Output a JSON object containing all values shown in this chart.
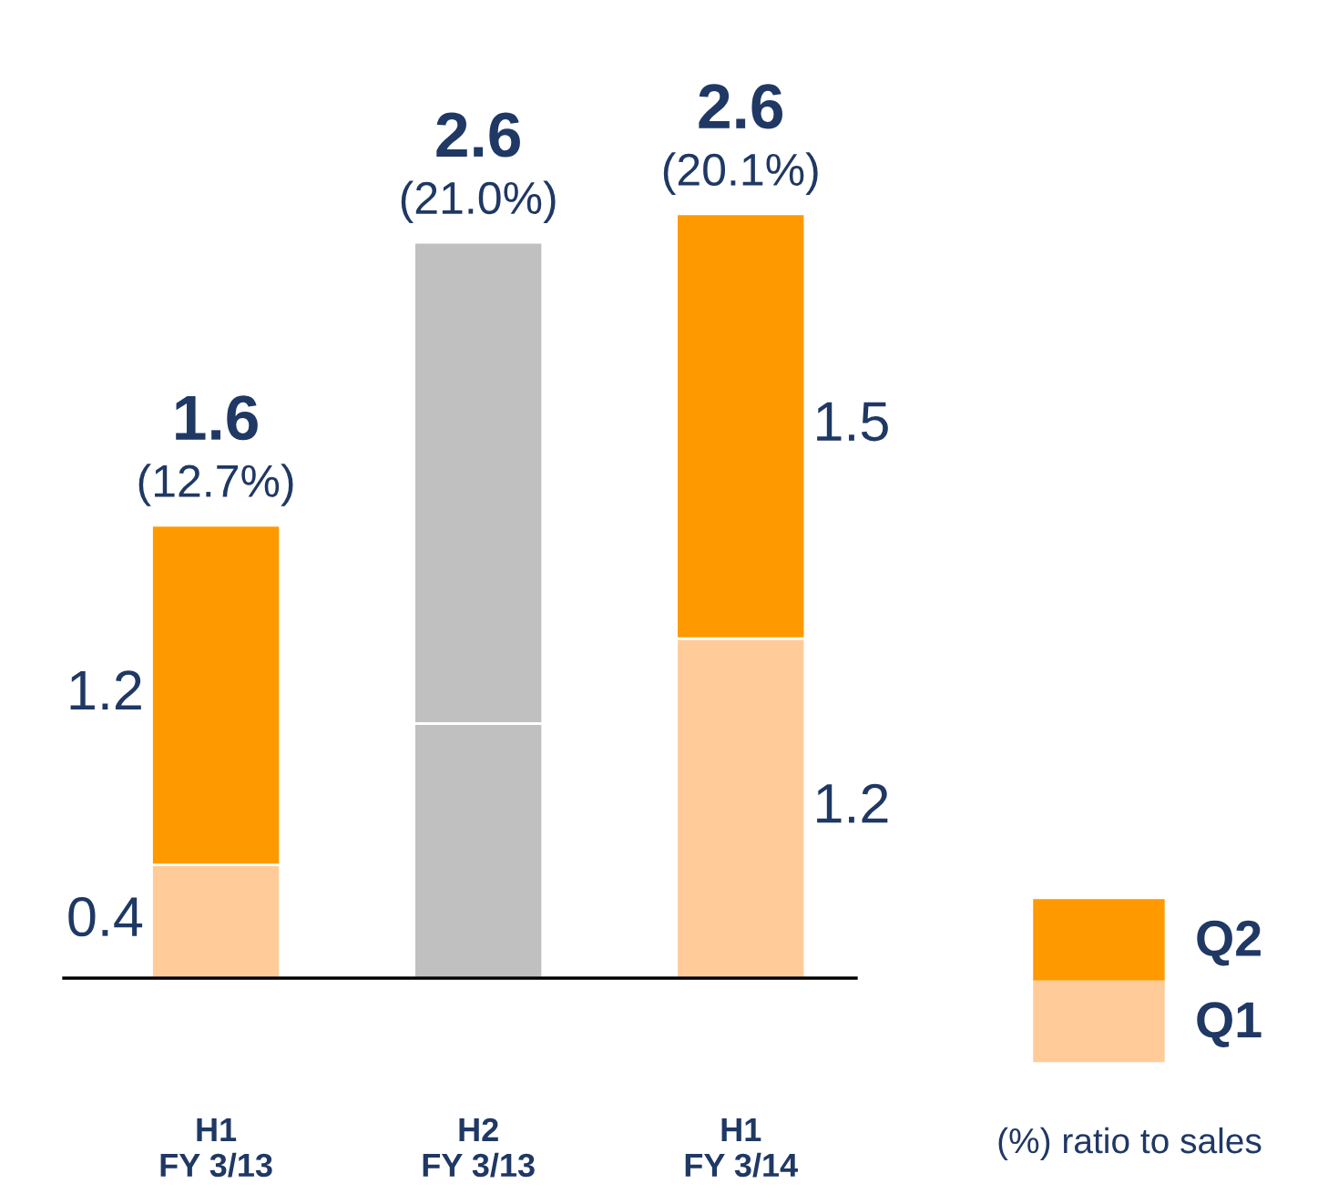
{
  "chart_data": {
    "type": "bar",
    "stacked": true,
    "categories": [
      "H1\nFY 3/13",
      "H2\nFY 3/13",
      "H1\nFY 3/14"
    ],
    "series": [
      {
        "name": "Q1",
        "color": "#ffcc99",
        "values": [
          0.4,
          null,
          1.2
        ],
        "value_labels": [
          "0.4",
          null,
          "1.2"
        ]
      },
      {
        "name": "Q2",
        "color": "#ff9900",
        "values": [
          1.2,
          null,
          1.5
        ],
        "value_labels": [
          "1.2",
          null,
          "1.5"
        ]
      },
      {
        "color": "#c0c0c0",
        "values": [
          null,
          0.9,
          null
        ]
      },
      {
        "color": "#c0c0c0",
        "values": [
          null,
          1.7,
          null
        ]
      }
    ],
    "totals": [
      "1.6",
      "2.6",
      "2.6"
    ],
    "annotations": [
      "(12.7%)",
      "(21.0%)",
      "(20.1%)",
      "(%) ratio to sales"
    ],
    "legend": "bottom right",
    "grid": false
  }
}
